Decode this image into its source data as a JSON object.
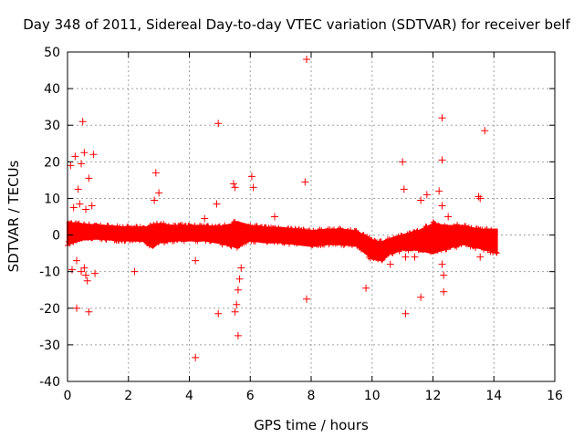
{
  "chart_data": {
    "type": "scatter",
    "title": "Day 348 of 2011, Sidereal Day-to-day VTEC variation (SDTVAR) for receiver belf",
    "xlabel": "GPS time / hours",
    "ylabel": "SDTVAR / TECUs",
    "xlim": [
      0,
      16
    ],
    "ylim": [
      -40,
      50
    ],
    "xticks": [
      0,
      2,
      4,
      6,
      8,
      10,
      12,
      14,
      16
    ],
    "yticks": [
      -40,
      -30,
      -20,
      -10,
      0,
      10,
      20,
      30,
      40,
      50
    ],
    "grid": true,
    "marker": "+",
    "colors": {
      "series": "#ff0000",
      "grid": "#a0a0a0",
      "axis": "#000000"
    },
    "series": [
      {
        "name": "SDTVAR",
        "band": {
          "description": "dense band of points between 0.0 and 14.1 hours",
          "x": [
            0.0,
            0.5,
            1.0,
            1.5,
            2.0,
            2.5,
            2.8,
            3.0,
            3.5,
            4.0,
            4.5,
            5.0,
            5.4,
            5.6,
            5.8,
            6.0,
            6.5,
            7.0,
            7.5,
            8.0,
            8.5,
            9.0,
            9.5,
            10.0,
            10.3,
            10.6,
            11.0,
            11.5,
            12.0,
            12.5,
            13.0,
            13.5,
            14.0,
            14.1
          ],
          "center": [
            0.5,
            0.8,
            0.8,
            0.5,
            0.3,
            0.2,
            -0.5,
            0.5,
            0.5,
            0.5,
            0.5,
            0.0,
            0.0,
            0.0,
            0.5,
            0.5,
            0.0,
            0.0,
            -0.5,
            -1.0,
            -0.5,
            -0.5,
            -1.0,
            -4.0,
            -4.5,
            -3.0,
            -2.0,
            -1.5,
            -1.0,
            -0.5,
            0.0,
            -1.0,
            -1.5,
            -1.5
          ],
          "halfwidth": [
            3.0,
            2.0,
            1.8,
            1.8,
            1.8,
            1.8,
            3.0,
            2.5,
            2.0,
            2.0,
            2.0,
            2.2,
            3.0,
            3.5,
            2.5,
            2.0,
            2.0,
            2.0,
            2.0,
            2.0,
            2.0,
            2.0,
            2.0,
            2.5,
            2.5,
            2.0,
            2.0,
            2.5,
            4.0,
            3.0,
            2.5,
            2.5,
            3.0,
            3.0
          ]
        },
        "scatter_points": [
          [
            0.1,
            19
          ],
          [
            0.25,
            21.5
          ],
          [
            0.35,
            12.5
          ],
          [
            0.45,
            19.5
          ],
          [
            0.5,
            31
          ],
          [
            0.55,
            22.5
          ],
          [
            0.7,
            15.5
          ],
          [
            0.85,
            22
          ],
          [
            0.4,
            8.5
          ],
          [
            0.6,
            7
          ],
          [
            0.8,
            8
          ],
          [
            0.2,
            7.5
          ],
          [
            0.3,
            -7
          ],
          [
            0.15,
            -9.5
          ],
          [
            0.45,
            -10
          ],
          [
            0.55,
            -9
          ],
          [
            0.6,
            -11
          ],
          [
            0.65,
            -12.5
          ],
          [
            0.9,
            -10.5
          ],
          [
            0.3,
            -20
          ],
          [
            0.7,
            -21
          ],
          [
            2.2,
            -10
          ],
          [
            2.9,
            17
          ],
          [
            3.0,
            11.5
          ],
          [
            2.85,
            9.5
          ],
          [
            4.2,
            -33.5
          ],
          [
            4.2,
            -7
          ],
          [
            4.5,
            4.5
          ],
          [
            4.95,
            30.5
          ],
          [
            4.9,
            8.5
          ],
          [
            4.95,
            -21.5
          ],
          [
            5.45,
            14
          ],
          [
            5.5,
            13
          ],
          [
            5.6,
            -27.5
          ],
          [
            5.5,
            -21
          ],
          [
            5.55,
            -19
          ],
          [
            5.6,
            -15
          ],
          [
            5.65,
            -12
          ],
          [
            5.7,
            -9
          ],
          [
            6.05,
            16
          ],
          [
            6.1,
            13
          ],
          [
            6.8,
            5
          ],
          [
            7.85,
            48
          ],
          [
            7.8,
            14.5
          ],
          [
            7.85,
            -17.5
          ],
          [
            9.8,
            -14.5
          ],
          [
            10.6,
            -8
          ],
          [
            11.0,
            20
          ],
          [
            11.05,
            12.5
          ],
          [
            11.1,
            -21.5
          ],
          [
            11.1,
            -6
          ],
          [
            11.4,
            -6
          ],
          [
            11.6,
            -17
          ],
          [
            11.6,
            9.5
          ],
          [
            11.8,
            11
          ],
          [
            12.2,
            12
          ],
          [
            12.3,
            32
          ],
          [
            12.3,
            20.5
          ],
          [
            12.35,
            -15.5
          ],
          [
            12.3,
            -8
          ],
          [
            12.35,
            -11
          ],
          [
            12.3,
            8
          ],
          [
            12.5,
            5
          ],
          [
            13.5,
            10.5
          ],
          [
            13.55,
            10
          ],
          [
            13.7,
            28.5
          ],
          [
            13.55,
            -6
          ]
        ]
      }
    ]
  }
}
